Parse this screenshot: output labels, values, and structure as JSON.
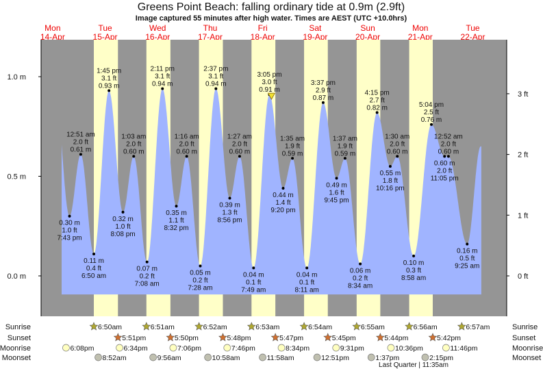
{
  "chart_data": {
    "type": "area",
    "title": "Greens Point Beach: falling  ordinary tide at 0.9m (2.9ft)",
    "subtitle": "Image captured 55 minutes after high water. Times are AEST (UTC +10.0hrs)",
    "days": [
      {
        "dow": "Mon",
        "date": "14-Apr"
      },
      {
        "dow": "Tue",
        "date": "15-Apr"
      },
      {
        "dow": "Wed",
        "date": "16-Apr"
      },
      {
        "dow": "Thu",
        "date": "17-Apr"
      },
      {
        "dow": "Fri",
        "date": "18-Apr"
      },
      {
        "dow": "Sat",
        "date": "19-Apr"
      },
      {
        "dow": "Sun",
        "date": "20-Apr"
      },
      {
        "dow": "Mon",
        "date": "21-Apr"
      },
      {
        "dow": "Tue",
        "date": "22-Apr"
      }
    ],
    "y_left": {
      "unit": "m",
      "ticks": [
        "0.0 m",
        "0.5 m",
        "1.0 m"
      ],
      "values": [
        0,
        0.5,
        1.0
      ],
      "ylim": [
        -0.2,
        1.2
      ]
    },
    "y_right": {
      "unit": "ft",
      "ticks": [
        "0 ft",
        "1 ft",
        "2 ft",
        "3 ft"
      ],
      "values": [
        0,
        1,
        2,
        3
      ]
    },
    "extremes": [
      {
        "hours": 19.72,
        "type": "low",
        "m": 0.3,
        "m_label": "0.30 m",
        "ft": "1.0 ft",
        "time": "7:43 pm"
      },
      {
        "hours": 24.85,
        "type": "high",
        "m": 0.61,
        "m_label": "0.61 m",
        "ft": "2.0 ft",
        "time": "12:51 am"
      },
      {
        "hours": 30.83,
        "type": "low",
        "m": 0.11,
        "m_label": "0.11 m",
        "ft": "0.4 ft",
        "time": "6:50 am"
      },
      {
        "hours": 37.75,
        "type": "high",
        "m": 0.93,
        "m_label": "0.93 m",
        "ft": "3.1 ft",
        "time": "1:45 pm"
      },
      {
        "hours": 44.13,
        "type": "low",
        "m": 0.32,
        "m_label": "0.32 m",
        "ft": "1.0 ft",
        "time": "8:08 pm"
      },
      {
        "hours": 49.05,
        "type": "high",
        "m": 0.6,
        "m_label": "0.60 m",
        "ft": "2.0 ft",
        "time": "1:03 am"
      },
      {
        "hours": 55.13,
        "type": "low",
        "m": 0.07,
        "m_label": "0.07 m",
        "ft": "0.2 ft",
        "time": "7:08 am"
      },
      {
        "hours": 62.18,
        "type": "high",
        "m": 0.94,
        "m_label": "0.94 m",
        "ft": "3.1 ft",
        "time": "2:11 pm"
      },
      {
        "hours": 68.53,
        "type": "low",
        "m": 0.35,
        "m_label": "0.35 m",
        "ft": "1.1 ft",
        "time": "8:32 pm"
      },
      {
        "hours": 73.27,
        "type": "high",
        "m": 0.6,
        "m_label": "0.60 m",
        "ft": "2.0 ft",
        "time": "1:16 am"
      },
      {
        "hours": 79.47,
        "type": "low",
        "m": 0.05,
        "m_label": "0.05 m",
        "ft": "0.2 ft",
        "time": "7:28 am"
      },
      {
        "hours": 86.62,
        "type": "high",
        "m": 0.94,
        "m_label": "0.94 m",
        "ft": "3.1 ft",
        "time": "2:37 pm"
      },
      {
        "hours": 92.93,
        "type": "low",
        "m": 0.39,
        "m_label": "0.39 m",
        "ft": "1.3 ft",
        "time": "8:56 pm"
      },
      {
        "hours": 97.45,
        "type": "high",
        "m": 0.6,
        "m_label": "0.60 m",
        "ft": "2.0 ft",
        "time": "1:27 am"
      },
      {
        "hours": 103.82,
        "type": "low",
        "m": 0.04,
        "m_label": "0.04 m",
        "ft": "0.1 ft",
        "time": "7:49 am"
      },
      {
        "hours": 111.08,
        "type": "high",
        "m": 0.91,
        "m_label": "0.91 m",
        "ft": "3.0 ft",
        "time": "3:05 pm"
      },
      {
        "hours": 117.33,
        "type": "low",
        "m": 0.44,
        "m_label": "0.44 m",
        "ft": "1.4 ft",
        "time": "9:20 pm"
      },
      {
        "hours": 121.58,
        "type": "high",
        "m": 0.59,
        "m_label": "0.59 m",
        "ft": "1.9 ft",
        "time": "1:35 am"
      },
      {
        "hours": 128.18,
        "type": "low",
        "m": 0.04,
        "m_label": "0.04 m",
        "ft": "0.1 ft",
        "time": "8:11 am"
      },
      {
        "hours": 135.62,
        "type": "high",
        "m": 0.87,
        "m_label": "0.87 m",
        "ft": "2.9 ft",
        "time": "3:37 pm"
      },
      {
        "hours": 141.75,
        "type": "low",
        "m": 0.49,
        "m_label": "0.49 m",
        "ft": "1.6 ft",
        "time": "9:45 pm"
      },
      {
        "hours": 145.62,
        "type": "high",
        "m": 0.59,
        "m_label": "0.59 m",
        "ft": "1.9 ft",
        "time": "1:37 am"
      },
      {
        "hours": 152.57,
        "type": "low",
        "m": 0.06,
        "m_label": "0.06 m",
        "ft": "0.2 ft",
        "time": "8:34 am"
      },
      {
        "hours": 160.25,
        "type": "high",
        "m": 0.82,
        "m_label": "0.82 m",
        "ft": "2.7 ft",
        "time": "4:15 pm"
      },
      {
        "hours": 166.27,
        "type": "low",
        "m": 0.55,
        "m_label": "0.55 m",
        "ft": "1.8 ft",
        "time": "10:16 pm"
      },
      {
        "hours": 169.5,
        "type": "high",
        "m": 0.6,
        "m_label": "0.60 m",
        "ft": "2.0 ft",
        "time": "1:30 am"
      },
      {
        "hours": 176.97,
        "type": "low",
        "m": 0.1,
        "m_label": "0.10 m",
        "ft": "0.3 ft",
        "time": "8:58 am"
      },
      {
        "hours": 185.07,
        "type": "high",
        "m": 0.76,
        "m_label": "0.76 m",
        "ft": "2.5 ft",
        "time": "5:04 pm"
      },
      {
        "hours": 191.08,
        "type": "low",
        "m": 0.6,
        "m_label": "0.60 m",
        "ft": "2.0 ft",
        "time": "11:05 pm"
      },
      {
        "hours": 192.87,
        "type": "high",
        "m": 0.6,
        "m_label": "0.60 m",
        "ft": "2.0 ft",
        "time": "12:52 am"
      },
      {
        "hours": 201.42,
        "type": "low",
        "m": 0.16,
        "m_label": "0.16 m",
        "ft": "0.5 ft",
        "time": "9:25 am"
      }
    ],
    "curve_edges": {
      "start": {
        "hours": 13.3,
        "m": 0.9
      },
      "end": {
        "hours": 207.6,
        "m": 0.65
      },
      "visible_hours": [
        16.1,
        207.9
      ]
    },
    "current": {
      "hours": 112.0,
      "m": 0.9
    },
    "daylight_hours": [
      [
        30.83,
        41.85
      ],
      [
        54.85,
        65.83
      ],
      [
        78.87,
        89.8
      ],
      [
        102.88,
        113.78
      ],
      [
        126.9,
        137.75
      ],
      [
        150.92,
        161.73
      ],
      [
        174.93,
        185.7
      ]
    ],
    "rows": {
      "labels": {
        "sunrise": "Sunrise",
        "sunset": "Sunset",
        "moonrise": "Moonrise",
        "moonset": "Moonset"
      },
      "sunrise": [
        {
          "hours": 30.83,
          "time": "6:50am"
        },
        {
          "hours": 54.85,
          "time": "6:51am"
        },
        {
          "hours": 78.87,
          "time": "6:52am"
        },
        {
          "hours": 102.88,
          "time": "6:53am"
        },
        {
          "hours": 126.9,
          "time": "6:54am"
        },
        {
          "hours": 150.92,
          "time": "6:55am"
        },
        {
          "hours": 174.93,
          "time": "6:56am"
        },
        {
          "hours": 198.95,
          "time": "6:57am"
        }
      ],
      "sunset": [
        {
          "hours": 41.85,
          "time": "5:51pm"
        },
        {
          "hours": 65.83,
          "time": "5:50pm"
        },
        {
          "hours": 89.8,
          "time": "5:48pm"
        },
        {
          "hours": 113.78,
          "time": "5:47pm"
        },
        {
          "hours": 137.75,
          "time": "5:45pm"
        },
        {
          "hours": 161.73,
          "time": "5:44pm"
        },
        {
          "hours": 185.7,
          "time": "5:42pm"
        }
      ],
      "moonrise": [
        {
          "hours": 18.13,
          "time": "6:08pm"
        },
        {
          "hours": 42.57,
          "time": "6:34pm"
        },
        {
          "hours": 67.1,
          "time": "7:06pm"
        },
        {
          "hours": 91.77,
          "time": "7:46pm"
        },
        {
          "hours": 116.57,
          "time": "8:34pm"
        },
        {
          "hours": 141.52,
          "time": "9:31pm"
        },
        {
          "hours": 166.6,
          "time": "10:36pm"
        },
        {
          "hours": 191.77,
          "time": "11:46pm"
        }
      ],
      "moonset": [
        {
          "hours": 32.87,
          "time": "8:52am"
        },
        {
          "hours": 57.93,
          "time": "9:56am"
        },
        {
          "hours": 82.97,
          "time": "10:58am"
        },
        {
          "hours": 107.97,
          "time": "11:58am"
        },
        {
          "hours": 132.85,
          "time": "12:51pm"
        },
        {
          "hours": 157.62,
          "time": "1:37pm"
        },
        {
          "hours": 182.25,
          "time": "2:15pm"
        }
      ],
      "moon_phase": "Last Quarter | 11:35am"
    },
    "colors": {
      "water": "#a0b4ff",
      "night": "#959595",
      "day": "#ffffc8",
      "day_label": "#ee0000",
      "sunrise": "#b0a830",
      "sunset": "#d07030",
      "moonrise": "#ffffc0",
      "moonset": "#c0c0b0"
    }
  }
}
